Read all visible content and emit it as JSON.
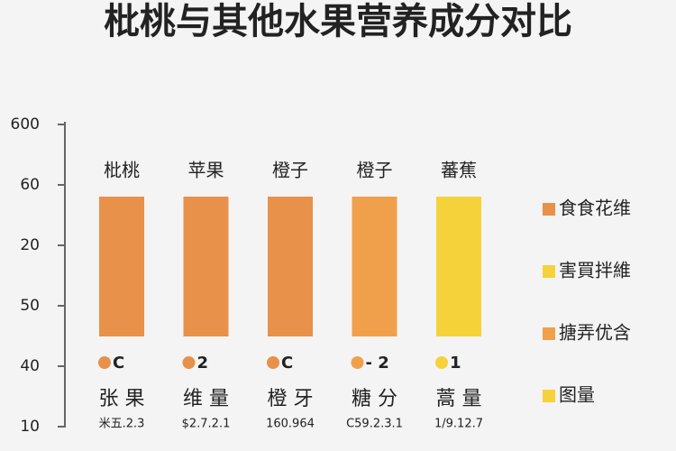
{
  "title": "枇桃与其他水果营养成分对比",
  "axis_labels": [
    "600",
    "60",
    "20",
    "50",
    "40",
    "10"
  ],
  "columns": [
    {
      "name": "枇桃",
      "icon_text": "C",
      "label": "张 果",
      "sublabel": "米五.2.3",
      "color": "#e8914a"
    },
    {
      "name": "苹果",
      "icon_text": "2",
      "label": "维 量",
      "sublabel": "$2.7.2.1",
      "color": "#e8914a"
    },
    {
      "name": "橙子",
      "icon_text": "C",
      "label": "橙 牙",
      "sublabel": "160.964",
      "color": "#e8914a"
    },
    {
      "name": "橙子",
      "icon_text": "- 2",
      "label": "糖 分",
      "sublabel": "C59.2.3.1",
      "color": "#f0a04b"
    },
    {
      "name": "蕃蕉",
      "icon_text": "1",
      "label": "蒿 量",
      "sublabel": "1/9.12.7",
      "color": "#f5d23a"
    }
  ],
  "legend": [
    {
      "name": "食食花维",
      "color": "#e8914a"
    },
    {
      "name": "害買拌維",
      "color": "#f5d23a"
    },
    {
      "name": "搪弄优含",
      "color": "#f0a04b"
    },
    {
      "name": "图量",
      "color": "#f5d23a"
    }
  ]
}
